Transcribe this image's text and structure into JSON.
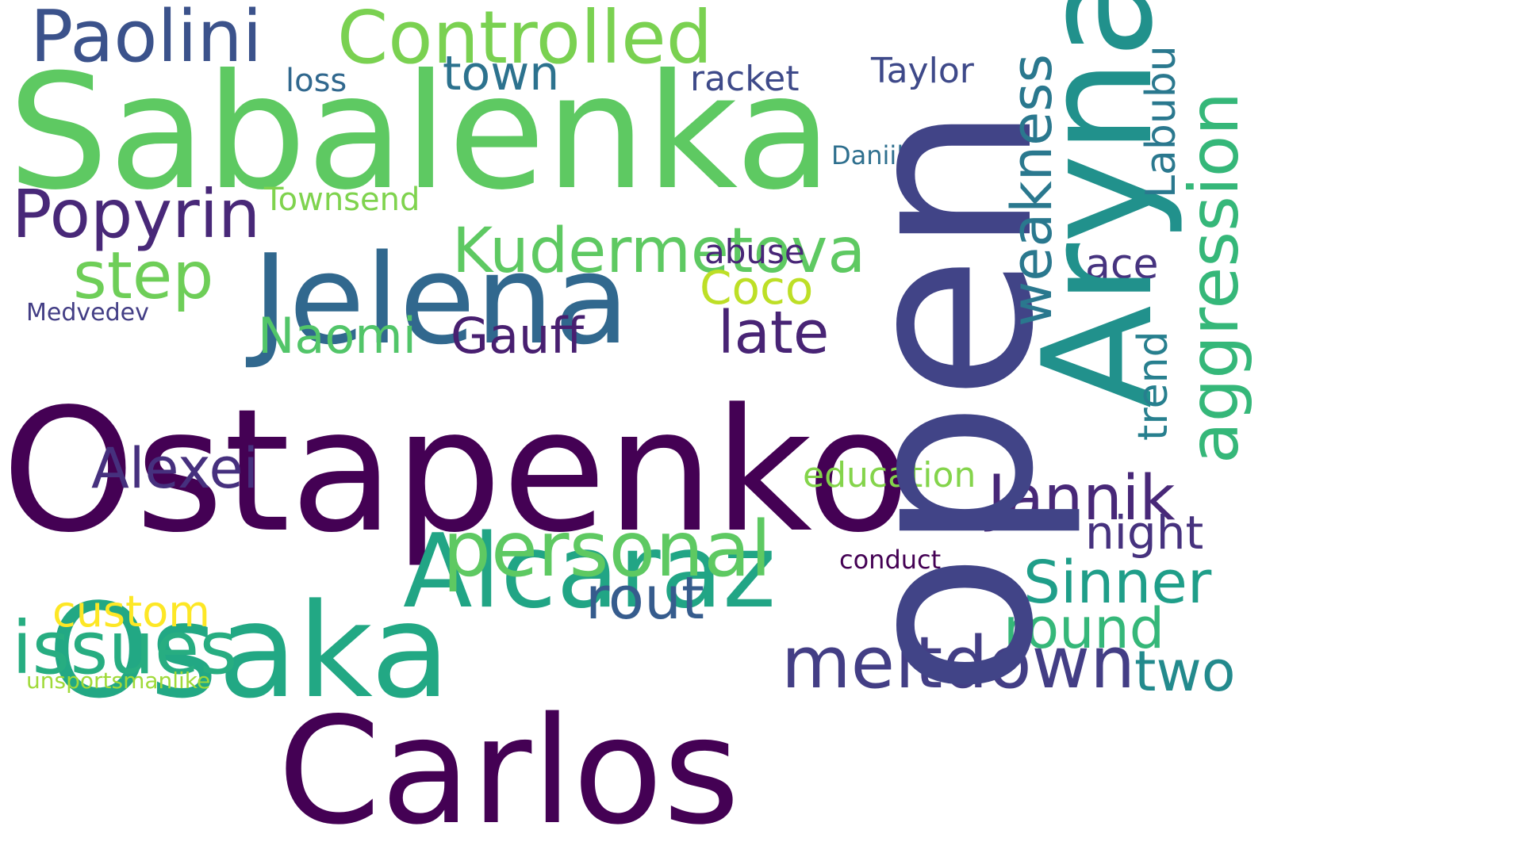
{
  "word_cloud": {
    "words": [
      {
        "text": "Sabalenka",
        "color": "#5ec962"
      },
      {
        "text": "Ostapenko",
        "color": "#440154"
      },
      {
        "text": "open",
        "color": "#414487"
      },
      {
        "text": "Aryna",
        "color": "#21918c"
      },
      {
        "text": "Jelena",
        "color": "#31688e"
      },
      {
        "text": "Carlos",
        "color": "#440154"
      },
      {
        "text": "Osaka",
        "color": "#22a884"
      },
      {
        "text": "Alcaraz",
        "color": "#21a585"
      },
      {
        "text": "Controlled",
        "color": "#7ad151"
      },
      {
        "text": "Paolini",
        "color": "#3b528b"
      },
      {
        "text": "Kudermetova",
        "color": "#5ec962"
      },
      {
        "text": "Popyrin",
        "color": "#482878"
      },
      {
        "text": "aggression",
        "color": "#35b779"
      },
      {
        "text": "weakness",
        "color": "#2a788e"
      },
      {
        "text": "personal",
        "color": "#5ec962"
      },
      {
        "text": "meltdown",
        "color": "#433e85"
      },
      {
        "text": "issues",
        "color": "#27ad81"
      },
      {
        "text": "step",
        "color": "#6ece58"
      },
      {
        "text": "Alexei",
        "color": "#46307e"
      },
      {
        "text": "Jannik",
        "color": "#482878"
      },
      {
        "text": "Sinner",
        "color": "#1f9e89"
      },
      {
        "text": "round",
        "color": "#35b779"
      },
      {
        "text": "rout",
        "color": "#365c8d"
      },
      {
        "text": "two",
        "color": "#238a8d"
      },
      {
        "text": "late",
        "color": "#482475"
      },
      {
        "text": "Gauff",
        "color": "#481f70"
      },
      {
        "text": "Naomi",
        "color": "#52c569"
      },
      {
        "text": "Coco",
        "color": "#bddf26"
      },
      {
        "text": "town",
        "color": "#2c728e"
      },
      {
        "text": "Labubu",
        "color": "#2a788e"
      },
      {
        "text": "trend",
        "color": "#277f8e"
      },
      {
        "text": "night",
        "color": "#46327e"
      },
      {
        "text": "ace",
        "color": "#46337f"
      },
      {
        "text": "custom",
        "color": "#fde725"
      },
      {
        "text": "education",
        "color": "#84d44b"
      },
      {
        "text": "Taylor",
        "color": "#3e4989"
      },
      {
        "text": "racket",
        "color": "#3e4a89"
      },
      {
        "text": "Townsend",
        "color": "#7fd34e"
      },
      {
        "text": "abuse",
        "color": "#482677"
      },
      {
        "text": "loss",
        "color": "#31688e"
      },
      {
        "text": "Daniil",
        "color": "#2e6f8e"
      },
      {
        "text": "conduct",
        "color": "#440154"
      },
      {
        "text": "Medvedev",
        "color": "#433e85"
      },
      {
        "text": "unsportsmanlike",
        "color": "#a0da39"
      }
    ]
  }
}
